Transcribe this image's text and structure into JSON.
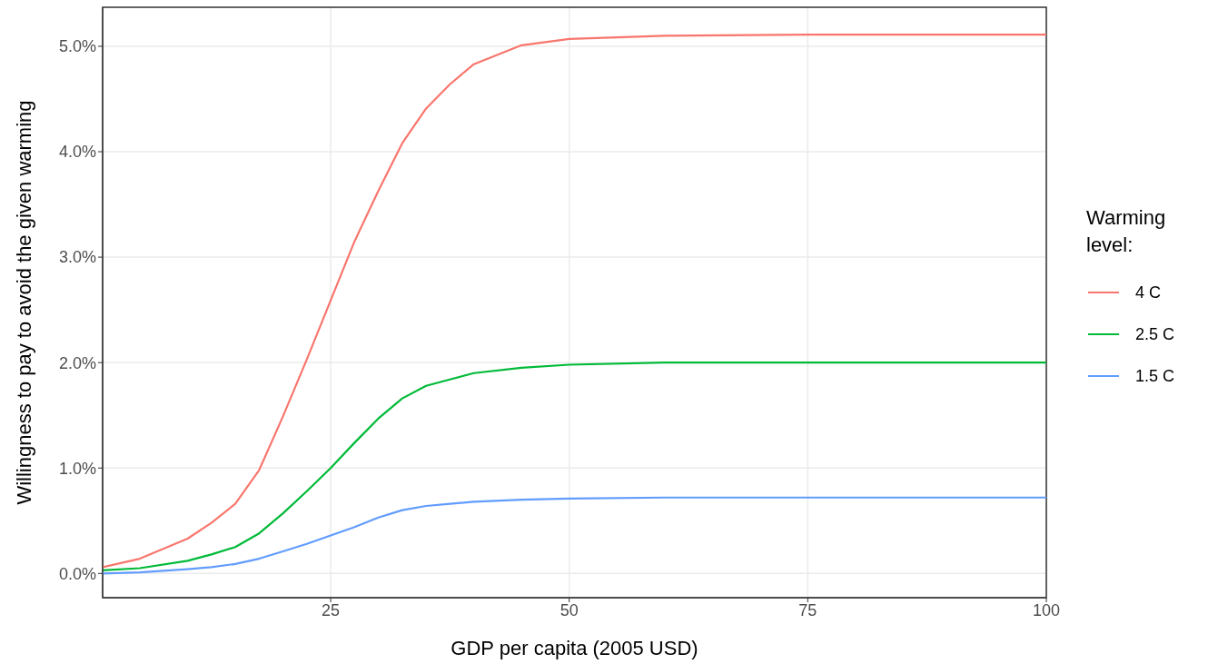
{
  "chart_data": {
    "type": "line",
    "xlabel": "GDP per capita (2005 USD)",
    "ylabel": "Willingness to pay to avoid the given warming",
    "legend_title": "Warming level:",
    "legend": "right",
    "grid": true,
    "marker": "none",
    "line_style": "solid",
    "x": [
      1.1,
      5,
      10,
      12.5,
      15,
      17.5,
      20,
      22.5,
      25,
      27.5,
      30,
      32.5,
      35,
      37.5,
      40,
      45,
      50,
      60,
      75,
      100
    ],
    "xlim": [
      1.1,
      100
    ],
    "xticks": [
      25,
      50,
      75,
      100
    ],
    "ylim": [
      -0.23,
      5.37
    ],
    "yticks": [
      {
        "value": 0,
        "label": "0.0%"
      },
      {
        "value": 1,
        "label": "1.0%"
      },
      {
        "value": 2,
        "label": "2.0%"
      },
      {
        "value": 3,
        "label": "3.0%"
      },
      {
        "value": 4,
        "label": "4.0%"
      },
      {
        "value": 5,
        "label": "5.0%"
      }
    ],
    "series": [
      {
        "name": "4 C",
        "color": "#f8766d",
        "values": [
          0.06,
          0.14,
          0.33,
          0.48,
          0.66,
          0.98,
          1.49,
          2.03,
          2.59,
          3.15,
          3.63,
          4.08,
          4.41,
          4.64,
          4.83,
          5.01,
          5.07,
          5.1,
          5.11,
          5.11
        ]
      },
      {
        "name": "2.5 C",
        "color": "#00ba38",
        "values": [
          0.03,
          0.05,
          0.12,
          0.18,
          0.25,
          0.38,
          0.57,
          0.78,
          1.0,
          1.24,
          1.47,
          1.66,
          1.78,
          1.84,
          1.9,
          1.95,
          1.98,
          2.0,
          2.0,
          2.0
        ]
      },
      {
        "name": "1.5 C",
        "color": "#619cff",
        "values": [
          0.0,
          0.01,
          0.04,
          0.06,
          0.09,
          0.14,
          0.21,
          0.28,
          0.36,
          0.44,
          0.53,
          0.6,
          0.64,
          0.66,
          0.68,
          0.7,
          0.71,
          0.72,
          0.72,
          0.72
        ]
      }
    ]
  }
}
